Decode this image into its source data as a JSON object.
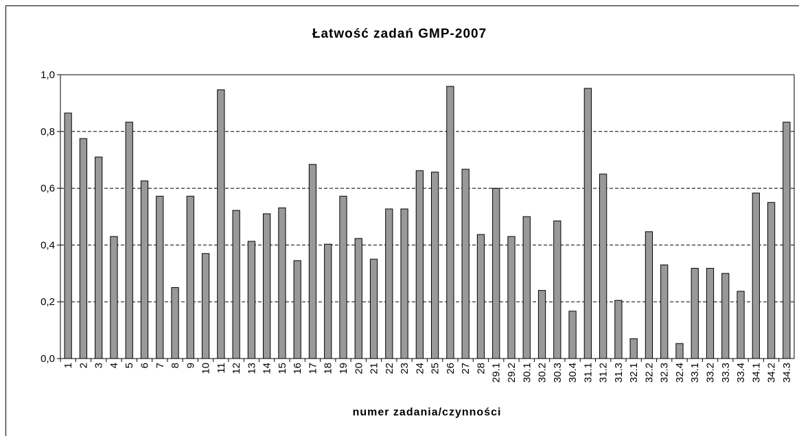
{
  "chart_data": {
    "type": "bar",
    "title": "Łatwość zadań GMP-2007",
    "x_label": "numer zadania/czynności",
    "categories": [
      "1",
      "2",
      "3",
      "4",
      "5",
      "6",
      "7",
      "8",
      "9",
      "10",
      "11",
      "12",
      "13",
      "14",
      "15",
      "16",
      "17",
      "18",
      "19",
      "20",
      "21",
      "22",
      "23",
      "24",
      "25",
      "26",
      "27",
      "28",
      "29.1",
      "29.2",
      "30.1",
      "30.2",
      "30.3",
      "30.4",
      "31.1",
      "31.2",
      "31.3",
      "32.1",
      "32.2",
      "32.3",
      "32.4",
      "33.1",
      "33.2",
      "33.3",
      "33.4",
      "34.1",
      "34.2",
      "34.3"
    ],
    "values": [
      0.865,
      0.775,
      0.71,
      0.43,
      0.833,
      0.626,
      0.572,
      0.25,
      0.572,
      0.37,
      0.947,
      0.522,
      0.413,
      0.51,
      0.531,
      0.345,
      0.684,
      0.403,
      0.572,
      0.423,
      0.35,
      0.527,
      0.527,
      0.662,
      0.657,
      0.959,
      0.667,
      0.437,
      0.6,
      0.43,
      0.5,
      0.24,
      0.485,
      0.167,
      0.952,
      0.65,
      0.205,
      0.07,
      0.447,
      0.33,
      0.053,
      0.318,
      0.318,
      0.3,
      0.237,
      0.583,
      0.55,
      0.833
    ],
    "color": "#999999",
    "ylim": [
      0,
      1
    ],
    "yticks": [
      {
        "value": 0,
        "label": "0,0"
      },
      {
        "value": 0.2,
        "label": "0,2"
      },
      {
        "value": 0.4,
        "label": "0,4"
      },
      {
        "value": 0.6,
        "label": "0,6"
      },
      {
        "value": 0.8,
        "label": "0,8"
      },
      {
        "value": 1,
        "label": "1,0"
      }
    ],
    "grid": true
  }
}
